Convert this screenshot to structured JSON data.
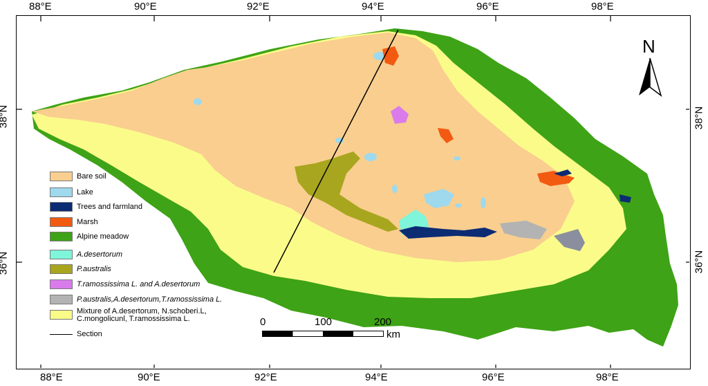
{
  "axes": {
    "lon_labels": [
      "88°E",
      "90°E",
      "92°E",
      "94°E",
      "96°E",
      "98°E"
    ],
    "lat_labels": [
      "38°N",
      "36°N"
    ]
  },
  "north_arrow": {
    "label": "N"
  },
  "scale_bar": {
    "ticks": [
      "0",
      "100",
      "200"
    ],
    "unit": "km"
  },
  "legend": {
    "items": [
      {
        "label": "Bare soil",
        "color": "#F9CE8F",
        "italic": false
      },
      {
        "label": "Lake",
        "color": "#9ED9EE",
        "italic": false
      },
      {
        "label": "Trees and farmland",
        "color": "#0B2B73",
        "italic": false
      },
      {
        "label": "Marsh",
        "color": "#F25A12",
        "italic": false
      },
      {
        "label": "Alpine meadow",
        "color": "#3EA316",
        "italic": false
      },
      {
        "label": "A.desertorum",
        "color": "#7FF5DA",
        "italic": true
      },
      {
        "label": "P.australis",
        "color": "#A8A61E",
        "italic": true
      },
      {
        "label": "T.ramossissima L. and A.desertorum",
        "color": "#D97BEB",
        "italic": true
      },
      {
        "label": "P.australis,A.desertorum,T.ramossissima L.",
        "color": "#B3B3B3",
        "italic": true
      },
      {
        "label": "Mixture of A.desertorum, N.schoberi.L,\nC.mongolicunl, T.ramossissima L.",
        "color": "#FBFB8A",
        "italic": false
      }
    ],
    "section_label": "Section"
  }
}
